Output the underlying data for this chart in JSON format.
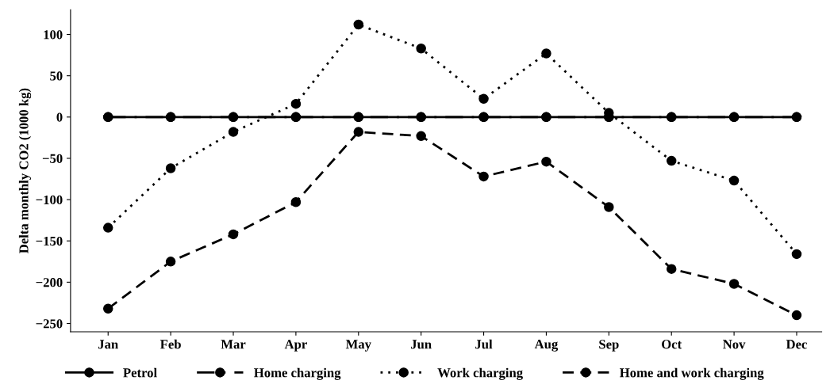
{
  "chart_data": {
    "type": "line",
    "ylabel": "Delta monthly CO2 (1000 kg)",
    "categories": [
      "Jan",
      "Feb",
      "Mar",
      "Apr",
      "May",
      "Jun",
      "Jul",
      "Aug",
      "Sep",
      "Oct",
      "Nov",
      "Dec"
    ],
    "series": [
      {
        "name": "Petrol",
        "color": "#000000",
        "line_style": "solid",
        "values": [
          0,
          0,
          0,
          0,
          0,
          0,
          0,
          0,
          0,
          0,
          0,
          0
        ]
      },
      {
        "name": "Home charging",
        "color": "#000000",
        "line_style": "dashdot",
        "values": [
          0,
          0,
          0,
          0,
          0,
          0,
          0,
          0,
          0,
          0,
          0,
          0
        ]
      },
      {
        "name": "Work charging",
        "color": "#000000",
        "line_style": "dotted",
        "values": [
          -134,
          -62,
          -18,
          16,
          112,
          83,
          22,
          77,
          5,
          -53,
          -77,
          -166
        ]
      },
      {
        "name": "Home and work charging",
        "color": "#000000",
        "line_style": "dashed",
        "values": [
          -232,
          -175,
          -142,
          -103,
          -18,
          -23,
          -72,
          -54,
          -109,
          -184,
          -202,
          -240
        ]
      }
    ],
    "ylim": [
      -260,
      130
    ],
    "yticks": [
      -250,
      -200,
      -150,
      -100,
      -50,
      0,
      50,
      100
    ],
    "marker": "circle",
    "grid": false,
    "legend": "bottom"
  }
}
